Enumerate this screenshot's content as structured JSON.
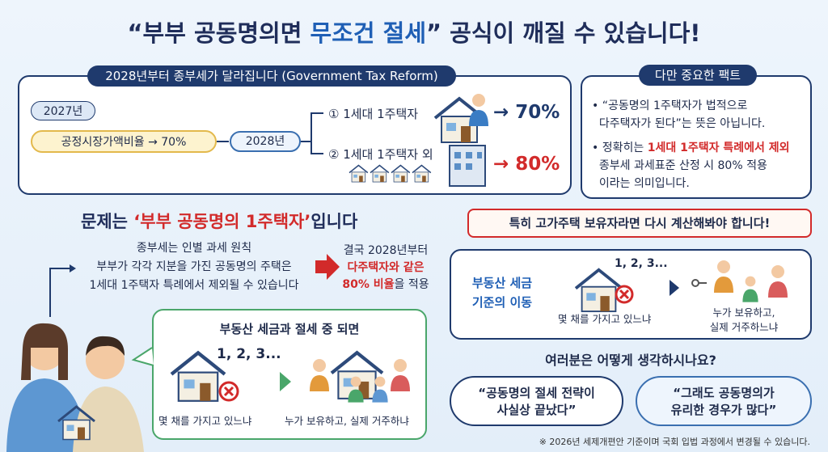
{
  "title": {
    "parts": [
      "“부부 공동명의면 ",
      "무조건 절세",
      "” 공식이 깨질 수 있습니다!"
    ]
  },
  "reform": {
    "header": "2028년부터 종부세가 달라집니다 (Government Tax Reform)",
    "year_2027": "2027년",
    "ratio_2027": "공정시장가액비율 → 70%",
    "year_2028": "2028년",
    "case1": "① 1세대 1주택자",
    "case1_rate": "→ 70%",
    "case2": "② 1세대 1주택자 외",
    "case2_rate": "→ 80%"
  },
  "fact": {
    "header": "다만 중요한 팩트",
    "bullet1": [
      "“공동명의 1주택자가 법적으로",
      "다주택자가 된다”는 뜻은 아닙니다."
    ],
    "bullet2": {
      "lead": "정확히는 ",
      "highlight": "1세대 1주택자 특례에서 제외",
      "lines": [
        "종부세 과세표준 산정 시 80% 적용",
        "이라는 의미입니다."
      ]
    }
  },
  "problem": {
    "heading": [
      "문제는 ",
      "‘부부 공동명의 1주택자’",
      "입니다"
    ],
    "explanation": [
      "종부세는 인별 과세 원칙",
      "부부가 각각 지분을 가진 공동명의 주택은",
      "1세대 1주택자 특례에서 제외될 수 있습니다"
    ],
    "result": {
      "line1": "결국 2028년부터",
      "line2": "다주택자와 같은",
      "line3_highlight": "80% 비율",
      "line3_rest": "을 적용"
    }
  },
  "bubble": {
    "title": "부동산 세금과 절세 중 되면",
    "count": "1, 2, 3...",
    "before": "몇 채를 가지고 있느냐",
    "after": "누가 보유하고, 실제 거주하냐"
  },
  "warning": "특히 고가주택 보유자라면 다시 계산해봐야 합니다!",
  "shift": {
    "title": [
      "부동산 세금",
      "기준의 이동"
    ],
    "count": "1, 2, 3...",
    "before": "몇 채를 가지고 있느냐",
    "after": [
      "누가 보유하고,",
      "실제 거주하느냐"
    ]
  },
  "question": "여러분은 어떻게 생각하시나요?",
  "opinions": [
    [
      "“공동명의 절세 전략이",
      "사실상 끝났다”"
    ],
    [
      "“그래도 공동명의가",
      "유리한 경우가 많다”"
    ]
  ],
  "footnote": "※ 2026년 세제개편안 기준이며 국회 입법 과정에서 변경될 수 있습니다."
}
